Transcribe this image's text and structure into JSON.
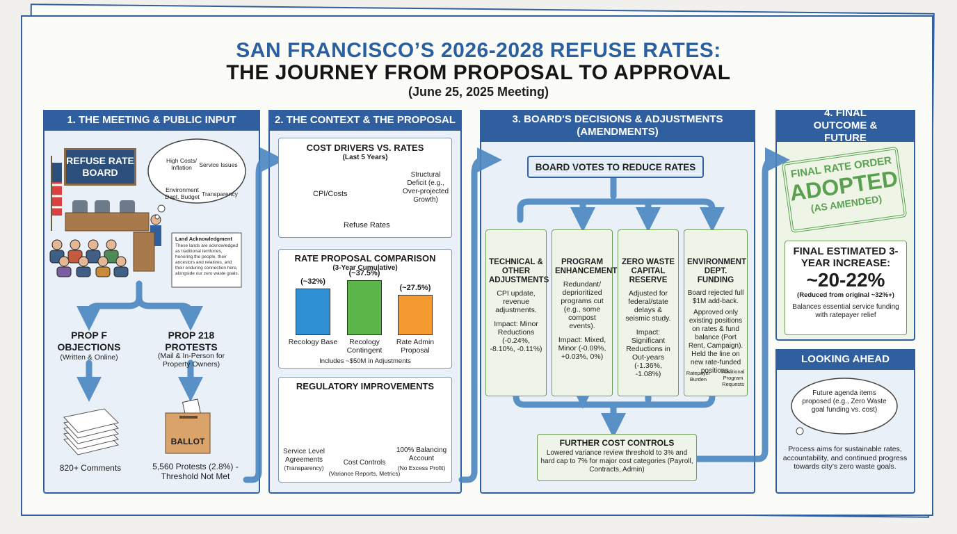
{
  "header": {
    "title_line1": "SAN FRANCISCO’S 2026-2028 REFUSE RATES:",
    "title_line2": "THE JOURNEY FROM PROPOSAL TO APPROVAL",
    "subtitle": "(June 25, 2025 Meeting)"
  },
  "panel1": {
    "title": "1. THE MEETING & PUBLIC INPUT",
    "board_sign": "REFUSE RATE BOARD",
    "concerns": [
      "High Costs/ Inflation",
      "Service Issues",
      "Environment Dept. Budget",
      "Transparency"
    ],
    "land_acknowledgment": {
      "title": "Land Acknowledgment",
      "text": "These lands are acknowledged as traditional territories, honoring the people, their ancestors and relatives, and their enduring connection here, alongside our zero waste goals."
    },
    "prop_f": {
      "title": "PROP F OBJECTIONS",
      "detail": "(Written & Online)",
      "result": "820+ Comments"
    },
    "prop_218": {
      "title": "PROP 218 PROTESTS",
      "detail": "(Mail & In-Person for Property Owners)",
      "ballot": "BALLOT",
      "result": "5,560 Protests (2.8%) - Threshold Not Met"
    }
  },
  "panel2": {
    "title": "2. THE CONTEXT & THE PROPOSAL",
    "cost_drivers": {
      "title": "COST DRIVERS VS. RATES",
      "subtitle": "(Last 5 Years)",
      "cost_label": "CPI/Costs",
      "rate_label": "Refuse Rates",
      "deficit_label": "Structural Deficit (e.g., Over-projected Growth)"
    },
    "rate_proposal_comparison": {
      "title": "RATE PROPOSAL COMPARISON",
      "subtitle": "(3-Year Cumulative)",
      "categories": [
        "Recology Base",
        "Recology Contingent",
        "Rate Admin Proposal"
      ],
      "values": [
        32,
        37.5,
        27.5
      ],
      "value_labels": [
        "(~32%)",
        "(~37.5%)",
        "(~27.5%)"
      ],
      "colors": [
        "#2f8fd3",
        "#5cb548",
        "#f59a30"
      ],
      "note": "Includes ~$50M in Adjustments"
    },
    "regulatory": {
      "title": "REGULATORY IMPROVEMENTS",
      "items": [
        {
          "label": "Service Level Agreements",
          "detail": "(Transparency)"
        },
        {
          "label": "Cost Controls",
          "detail": "(Variance Reports, Metrics)"
        },
        {
          "label": "100% Balancing Account",
          "detail": "(No Excess Profit)"
        }
      ]
    }
  },
  "panel3": {
    "title": "3. BOARD'S DECISIONS & ADJUSTMENTS (AMENDMENTS)",
    "vote": "BOARD VOTES TO REDUCE RATES",
    "columns": [
      {
        "title": "TECHNICAL & OTHER ADJUSTMENTS",
        "body": "CPI update, revenue adjustments.",
        "impact": "Impact: Minor Reductions (-0.24%, -8.10%, -0.11%)"
      },
      {
        "title": "PROGRAM ENHANCEMENTS",
        "body": "Redundant/ deprioritized programs cut (e.g., some compost events).",
        "impact": "Impact: Mixed, Minor (-0.09%, +0.03%, 0%)"
      },
      {
        "title": "ZERO WASTE CAPITAL RESERVE",
        "body": "Adjusted for federal/state delays & seismic study.",
        "impact": "Impact: Significant Reductions in Out-years (-1.36%, -1.08%)"
      },
      {
        "title": "ENVIRONMENT DEPT. FUNDING",
        "body": "Board rejected full $1M add-back.",
        "impact": "Approved only existing positions on rates & fund balance (Port Rent, Campaign). Held the line on new rate-funded positions.",
        "scale_left": "Ratepayer Burden",
        "scale_right": "Additional Program Requests"
      }
    ],
    "further": {
      "title": "FURTHER COST CONTROLS",
      "text": "Lowered variance review threshold to 3% and hard cap to 7% for major cost categories (Payroll, Contracts, Admin)"
    }
  },
  "panel4": {
    "title": "4. FINAL OUTCOME & FUTURE",
    "stamp": {
      "line1": "FINAL RATE ORDER",
      "line2": "ADOPTED",
      "line3": "(AS AMENDED)"
    },
    "final": {
      "title": "FINAL ESTIMATED 3-YEAR INCREASE:",
      "value": "~20-22%",
      "note": "(Reduced from original ~32%+)",
      "text": "Balances essential service funding with ratepayer relief"
    },
    "looking_ahead": {
      "title": "LOOKING AHEAD",
      "bubble": "Future agenda items proposed (e.g., Zero Waste goal funding vs. cost)",
      "text": "Process aims for sustainable rates, accountability, and continued progress towards city’s zero waste goals."
    }
  }
}
